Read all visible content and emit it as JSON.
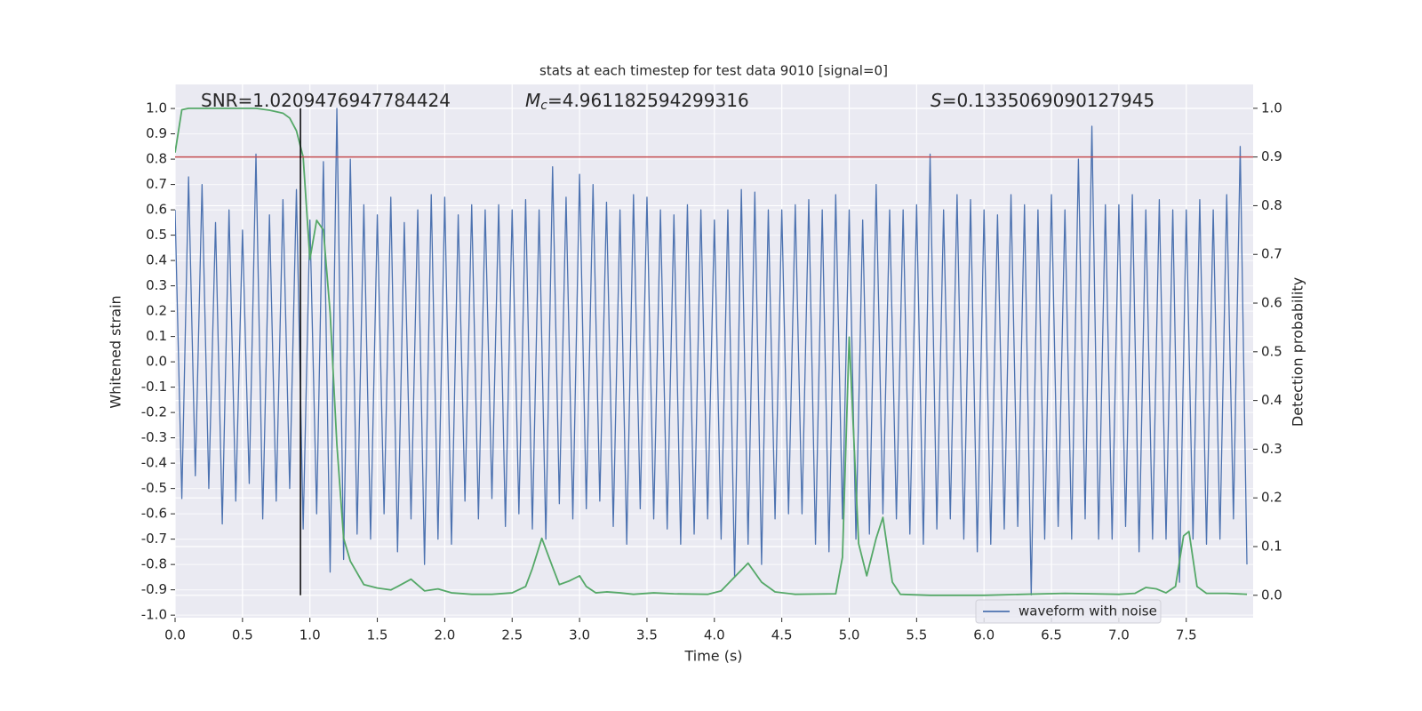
{
  "chart_data": {
    "type": "line",
    "title": "stats at each timestep for test data 9010 [signal=0]",
    "x_label": "Time (s)",
    "y_label": "Whitened strain",
    "y2_label": "Detection probability",
    "annotations": [
      {
        "text": "SNR=1.0209476947784424"
      },
      {
        "symbol": "M",
        "subscript": "c",
        "text": "=4.961182594299316"
      },
      {
        "symbol": "S",
        "text": "=0.1335069090127945"
      }
    ],
    "xlim": [
      0,
      7.996
    ],
    "ylim": [
      -1.01,
      1.095
    ],
    "y2lim": [
      -0.046,
      1.049
    ],
    "xticks": [
      {
        "value": 0,
        "label": "0.0"
      },
      0.5,
      {
        "value": 1,
        "label": "1.0"
      },
      1.5,
      {
        "value": 2,
        "label": "2.0"
      },
      2.5,
      {
        "value": 3,
        "label": "3.0"
      },
      3.5,
      {
        "value": 4,
        "label": "4.0"
      },
      4.5,
      {
        "value": 5,
        "label": "5.0"
      },
      5.5,
      {
        "value": 6,
        "label": "6.0"
      },
      6.5,
      {
        "value": 7,
        "label": "7.0"
      },
      7.5
    ],
    "yticks": [
      {
        "value": -1,
        "label": "-1.0"
      },
      -0.9,
      -0.8,
      -0.7,
      -0.6,
      -0.5,
      -0.4,
      -0.3,
      -0.2,
      -0.1,
      {
        "value": 0,
        "label": "0.0"
      },
      0.1,
      0.2,
      0.3,
      0.4,
      0.5,
      0.6,
      0.7,
      0.8,
      0.9,
      {
        "value": 1,
        "label": "1.0"
      }
    ],
    "y2ticks": [
      {
        "value": 0,
        "label": "0.0"
      },
      0.1,
      0.2,
      0.3,
      0.4,
      0.5,
      0.6,
      0.7,
      0.8,
      0.9,
      {
        "value": 1,
        "label": "1.0"
      }
    ],
    "grid": true,
    "legend": "lower right",
    "series": [
      {
        "name": "waveform with noise",
        "color": "#4c72b0",
        "x": [
          0,
          0.05,
          0.1,
          0.15,
          0.2,
          0.25,
          0.3,
          0.35,
          0.4,
          0.45,
          0.5,
          0.55,
          0.6,
          0.65,
          0.7,
          0.75,
          0.8,
          0.85,
          0.9,
          0.95,
          1.0,
          1.05,
          1.1,
          1.15,
          1.2,
          1.25,
          1.3,
          1.35,
          1.4,
          1.45,
          1.5,
          1.55,
          1.6,
          1.65,
          1.7,
          1.75,
          1.8,
          1.85,
          1.9,
          1.95,
          2.0,
          2.05,
          2.1,
          2.15,
          2.2,
          2.25,
          2.3,
          2.35,
          2.4,
          2.45,
          2.5,
          2.55,
          2.6,
          2.65,
          2.7,
          2.75,
          2.8,
          2.85,
          2.9,
          2.95,
          3.0,
          3.05,
          3.1,
          3.15,
          3.2,
          3.25,
          3.3,
          3.35,
          3.4,
          3.45,
          3.5,
          3.55,
          3.6,
          3.65,
          3.7,
          3.75,
          3.8,
          3.85,
          3.9,
          3.95,
          4.0,
          4.05,
          4.1,
          4.15,
          4.2,
          4.25,
          4.3,
          4.35,
          4.4,
          4.45,
          4.5,
          4.55,
          4.6,
          4.65,
          4.7,
          4.75,
          4.8,
          4.85,
          4.9,
          4.95,
          5.0,
          5.05,
          5.1,
          5.15,
          5.2,
          5.25,
          5.3,
          5.35,
          5.4,
          5.45,
          5.5,
          5.55,
          5.6,
          5.65,
          5.7,
          5.75,
          5.8,
          5.85,
          5.9,
          5.95,
          6.0,
          6.05,
          6.1,
          6.15,
          6.2,
          6.25,
          6.3,
          6.35,
          6.4,
          6.45,
          6.5,
          6.55,
          6.6,
          6.65,
          6.7,
          6.75,
          6.8,
          6.85,
          6.9,
          6.95,
          7.0,
          7.05,
          7.1,
          7.15,
          7.2,
          7.25,
          7.3,
          7.35,
          7.4,
          7.45,
          7.5,
          7.55,
          7.6,
          7.65,
          7.7,
          7.75,
          7.8,
          7.85,
          7.9,
          7.95
        ],
        "values": [
          0.6,
          -0.54,
          0.73,
          -0.45,
          0.7,
          -0.5,
          0.55,
          -0.64,
          0.6,
          -0.55,
          0.52,
          -0.48,
          0.82,
          -0.62,
          0.58,
          -0.55,
          0.64,
          -0.5,
          0.68,
          -0.66,
          0.56,
          -0.6,
          0.79,
          -0.83,
          1.0,
          -0.78,
          0.8,
          -0.68,
          0.62,
          -0.7,
          0.58,
          -0.6,
          0.65,
          -0.75,
          0.55,
          -0.62,
          0.6,
          -0.8,
          0.66,
          -0.7,
          0.65,
          -0.72,
          0.58,
          -0.55,
          0.62,
          -0.62,
          0.6,
          -0.54,
          0.62,
          -0.65,
          0.6,
          -0.6,
          0.64,
          -0.66,
          0.6,
          -0.7,
          0.77,
          -0.56,
          0.65,
          -0.62,
          0.74,
          -0.58,
          0.7,
          -0.55,
          0.63,
          -0.65,
          0.6,
          -0.72,
          0.66,
          -0.58,
          0.65,
          -0.62,
          0.6,
          -0.66,
          0.58,
          -0.72,
          0.62,
          -0.68,
          0.6,
          -0.62,
          0.56,
          -0.7,
          0.6,
          -0.85,
          0.68,
          -0.72,
          0.67,
          -0.8,
          0.6,
          -0.62,
          0.6,
          -0.6,
          0.62,
          -0.6,
          0.64,
          -0.72,
          0.6,
          -0.75,
          0.66,
          -0.62,
          0.6,
          -0.7,
          0.56,
          -0.68,
          0.7,
          -0.6,
          0.6,
          -0.62,
          0.6,
          -0.68,
          0.62,
          -0.72,
          0.82,
          -0.66,
          0.6,
          -0.62,
          0.66,
          -0.7,
          0.64,
          -0.75,
          0.6,
          -0.72,
          0.58,
          -0.66,
          0.66,
          -0.65,
          0.62,
          -0.92,
          0.6,
          -0.7,
          0.66,
          -0.65,
          0.6,
          -0.7,
          0.8,
          -0.62,
          0.93,
          -0.7,
          0.62,
          -0.7,
          0.62,
          -0.65,
          0.66,
          -0.75,
          0.6,
          -0.7,
          0.64,
          -0.7,
          0.6,
          -0.87,
          0.6,
          -0.7,
          0.64,
          -0.72,
          0.6,
          -0.7,
          0.66,
          -0.62,
          0.85,
          -0.8
        ]
      },
      {
        "color": "#55a868",
        "axis": "y2",
        "x": [
          0,
          0.05,
          0.1,
          0.6,
          0.7,
          0.8,
          0.85,
          0.9,
          0.95,
          1.0,
          1.05,
          1.1,
          1.15,
          1.2,
          1.25,
          1.3,
          1.4,
          1.5,
          1.6,
          1.65,
          1.75,
          1.85,
          1.95,
          2.05,
          2.2,
          2.35,
          2.5,
          2.6,
          2.65,
          2.72,
          2.8,
          2.85,
          2.92,
          3.0,
          3.05,
          3.12,
          3.2,
          3.3,
          3.4,
          3.55,
          3.7,
          3.95,
          4.05,
          4.12,
          4.25,
          4.35,
          4.45,
          4.6,
          4.9,
          4.95,
          5.0,
          5.07,
          5.13,
          5.2,
          5.25,
          5.32,
          5.38,
          5.6,
          6.0,
          6.3,
          6.6,
          7.0,
          7.12,
          7.2,
          7.28,
          7.35,
          7.42,
          7.48,
          7.52,
          7.58,
          7.65,
          7.8,
          7.95
        ],
        "values": [
          0.909,
          0.997,
          1.0,
          1.0,
          0.996,
          0.99,
          0.98,
          0.954,
          0.9,
          0.69,
          0.77,
          0.75,
          0.58,
          0.31,
          0.117,
          0.07,
          0.022,
          0.015,
          0.011,
          0.018,
          0.033,
          0.009,
          0.013,
          0.005,
          0.002,
          0.002,
          0.005,
          0.018,
          0.055,
          0.117,
          0.058,
          0.022,
          0.029,
          0.04,
          0.018,
          0.005,
          0.007,
          0.005,
          0.002,
          0.005,
          0.003,
          0.002,
          0.009,
          0.029,
          0.066,
          0.027,
          0.007,
          0.002,
          0.003,
          0.078,
          0.53,
          0.106,
          0.04,
          0.117,
          0.16,
          0.027,
          0.002,
          0.0,
          0.0,
          0.002,
          0.004,
          0.002,
          0.004,
          0.016,
          0.013,
          0.005,
          0.018,
          0.122,
          0.131,
          0.018,
          0.004,
          0.004,
          0.002
        ]
      }
    ],
    "hlines": [
      {
        "y": 0.9,
        "axis": "y2",
        "color": "#c44e52"
      }
    ],
    "vlines": [
      {
        "x": 0.93,
        "ymin": 0,
        "ymax": 1,
        "axis": "y2",
        "color": "#000000"
      }
    ]
  }
}
